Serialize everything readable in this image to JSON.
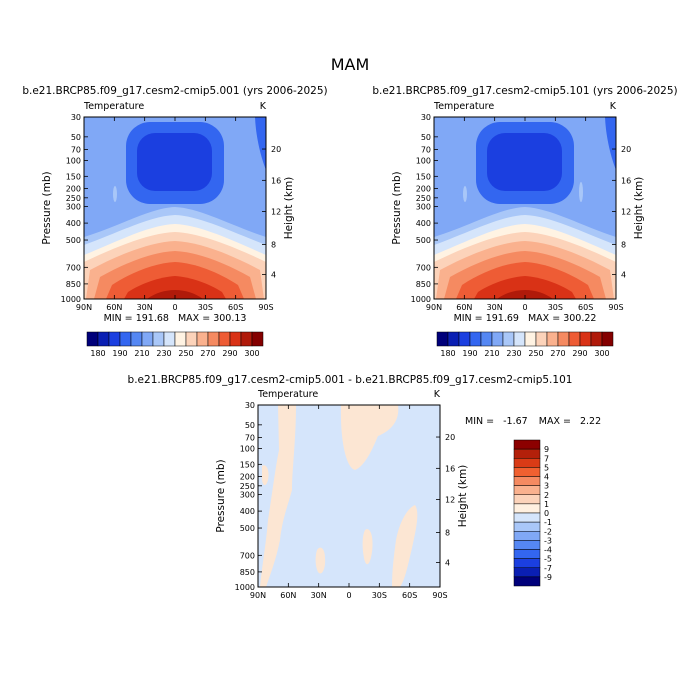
{
  "title": "MAM",
  "panels": [
    {
      "run_label": "b.e21.BRCP85.f09_g17.cesm2-cmip5.001 (yrs 2006-2025)",
      "variable": "Temperature",
      "units": "K",
      "min": "191.68",
      "max": "300.13"
    },
    {
      "run_label": "b.e21.BRCP85.f09_g17.cesm2-cmip5.101 (yrs 2006-2025)",
      "variable": "Temperature",
      "units": "K",
      "min": "191.69",
      "max": "300.22"
    }
  ],
  "diff_panel": {
    "run_label": "b.e21.BRCP85.f09_g17.cesm2-cmip5.001 - b.e21.BRCP85.f09_g17.cesm2-cmip5.101",
    "variable": "Temperature",
    "units": "K",
    "min": "-1.67",
    "max": "2.22"
  },
  "labels": {
    "min_prefix": "MIN =",
    "max_prefix": "MAX =",
    "ylabel": "Pressure (mb)",
    "ylabel_right": "Height (km)"
  },
  "chart_data": [
    {
      "type": "heatmap",
      "subtype": "filled-contour",
      "title": "Temperature",
      "x_tick_labels": [
        "90N",
        "60N",
        "30N",
        "0",
        "30S",
        "60S",
        "90S"
      ],
      "y_tick_labels": [
        "30",
        "50",
        "70",
        "100",
        "150",
        "200",
        "250",
        "300",
        "400",
        "500",
        "700",
        "850",
        "1000"
      ],
      "y_right_tick_labels": [
        "20",
        "16",
        "12",
        "8",
        "4"
      ],
      "xlabel": "",
      "ylabel": "Pressure (mb)",
      "ylabel_right": "Height (km)",
      "colorbar": {
        "tick_labels": [
          "180",
          "190",
          "210",
          "230",
          "250",
          "270",
          "290",
          "300"
        ],
        "colors": [
          "#00007a",
          "#0a1fb3",
          "#1b3fe0",
          "#3366f0",
          "#5587f3",
          "#80a8f6",
          "#a9c7f8",
          "#d5e5fb",
          "#fff3e3",
          "#fcd3ba",
          "#fab18e",
          "#f58a61",
          "#ee5c35",
          "#d93216",
          "#b01a0a",
          "#840000"
        ]
      },
      "min": 191.68,
      "max": 300.13
    },
    {
      "type": "heatmap",
      "subtype": "filled-contour",
      "title": "Temperature",
      "x_tick_labels": [
        "90N",
        "60N",
        "30N",
        "0",
        "30S",
        "60S",
        "90S"
      ],
      "y_tick_labels": [
        "30",
        "50",
        "70",
        "100",
        "150",
        "200",
        "250",
        "300",
        "400",
        "500",
        "700",
        "850",
        "1000"
      ],
      "y_right_tick_labels": [
        "20",
        "16",
        "12",
        "8",
        "4"
      ],
      "xlabel": "",
      "ylabel": "Pressure (mb)",
      "ylabel_right": "Height (km)",
      "colorbar": {
        "tick_labels": [
          "180",
          "190",
          "210",
          "230",
          "250",
          "270",
          "290",
          "300"
        ],
        "colors": [
          "#00007a",
          "#0a1fb3",
          "#1b3fe0",
          "#3366f0",
          "#5587f3",
          "#80a8f6",
          "#a9c7f8",
          "#d5e5fb",
          "#fff3e3",
          "#fcd3ba",
          "#fab18e",
          "#f58a61",
          "#ee5c35",
          "#d93216",
          "#b01a0a",
          "#840000"
        ]
      },
      "min": 191.69,
      "max": 300.22
    },
    {
      "type": "heatmap",
      "subtype": "filled-contour-difference",
      "title": "Temperature",
      "x_tick_labels": [
        "90N",
        "60N",
        "30N",
        "0",
        "30S",
        "60S",
        "90S"
      ],
      "y_tick_labels": [
        "30",
        "50",
        "70",
        "100",
        "150",
        "200",
        "250",
        "300",
        "400",
        "500",
        "700",
        "850",
        "1000"
      ],
      "y_right_tick_labels": [
        "20",
        "16",
        "12",
        "8",
        "4"
      ],
      "xlabel": "",
      "ylabel": "Pressure (mb)",
      "ylabel_right": "Height (km)",
      "colorbar": {
        "tick_labels": [
          "9",
          "7",
          "5",
          "4",
          "3",
          "2",
          "1",
          "0",
          "-1",
          "-2",
          "-3",
          "-4",
          "-5",
          "-7",
          "-9"
        ],
        "colors": [
          "#8c0000",
          "#b3200a",
          "#d93b16",
          "#f06030",
          "#f58a61",
          "#fab18e",
          "#fcd3ba",
          "#fff0e0",
          "#d5e5fb",
          "#a9c7f8",
          "#80a8f6",
          "#5587f3",
          "#3366f0",
          "#1b3fe0",
          "#0a1fb3",
          "#00007a"
        ]
      },
      "min": -1.67,
      "max": 2.22
    }
  ]
}
